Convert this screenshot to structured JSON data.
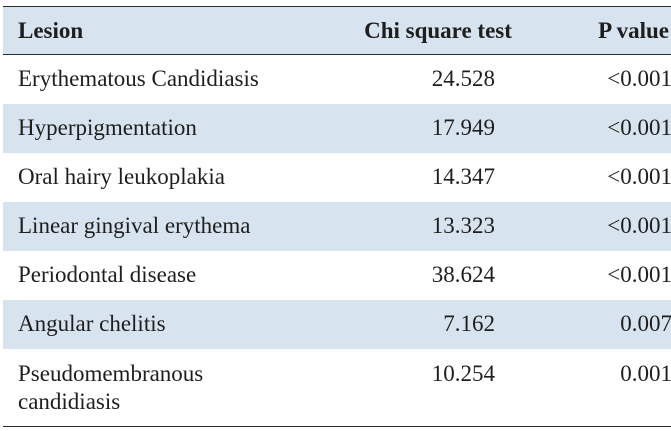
{
  "table": {
    "headers": [
      "Lesion",
      "Chi square test",
      "P value"
    ],
    "rows": [
      {
        "lesion": "Erythematous Candidiasis",
        "chi": "24.528",
        "p": "<0.001"
      },
      {
        "lesion": "Hyperpigmentation",
        "chi": "17.949",
        "p": "<0.001"
      },
      {
        "lesion": "Oral hairy leukoplakia",
        "chi": "14.347",
        "p": "<0.001"
      },
      {
        "lesion": "Linear gingival erythema",
        "chi": "13.323",
        "p": "<0.001"
      },
      {
        "lesion": "Periodontal disease",
        "chi": "38.624",
        "p": "<0.001"
      },
      {
        "lesion": "Angular chelitis",
        "chi": "7.162",
        "p": "0.007"
      },
      {
        "lesion": "Pseudomembranous\n candidiasis",
        "chi": "10.254",
        "p": "0.001"
      }
    ]
  },
  "colors": {
    "row_shade": "#d7e3ee",
    "rule": "#2a2a2a",
    "text": "#1e1e1e"
  }
}
